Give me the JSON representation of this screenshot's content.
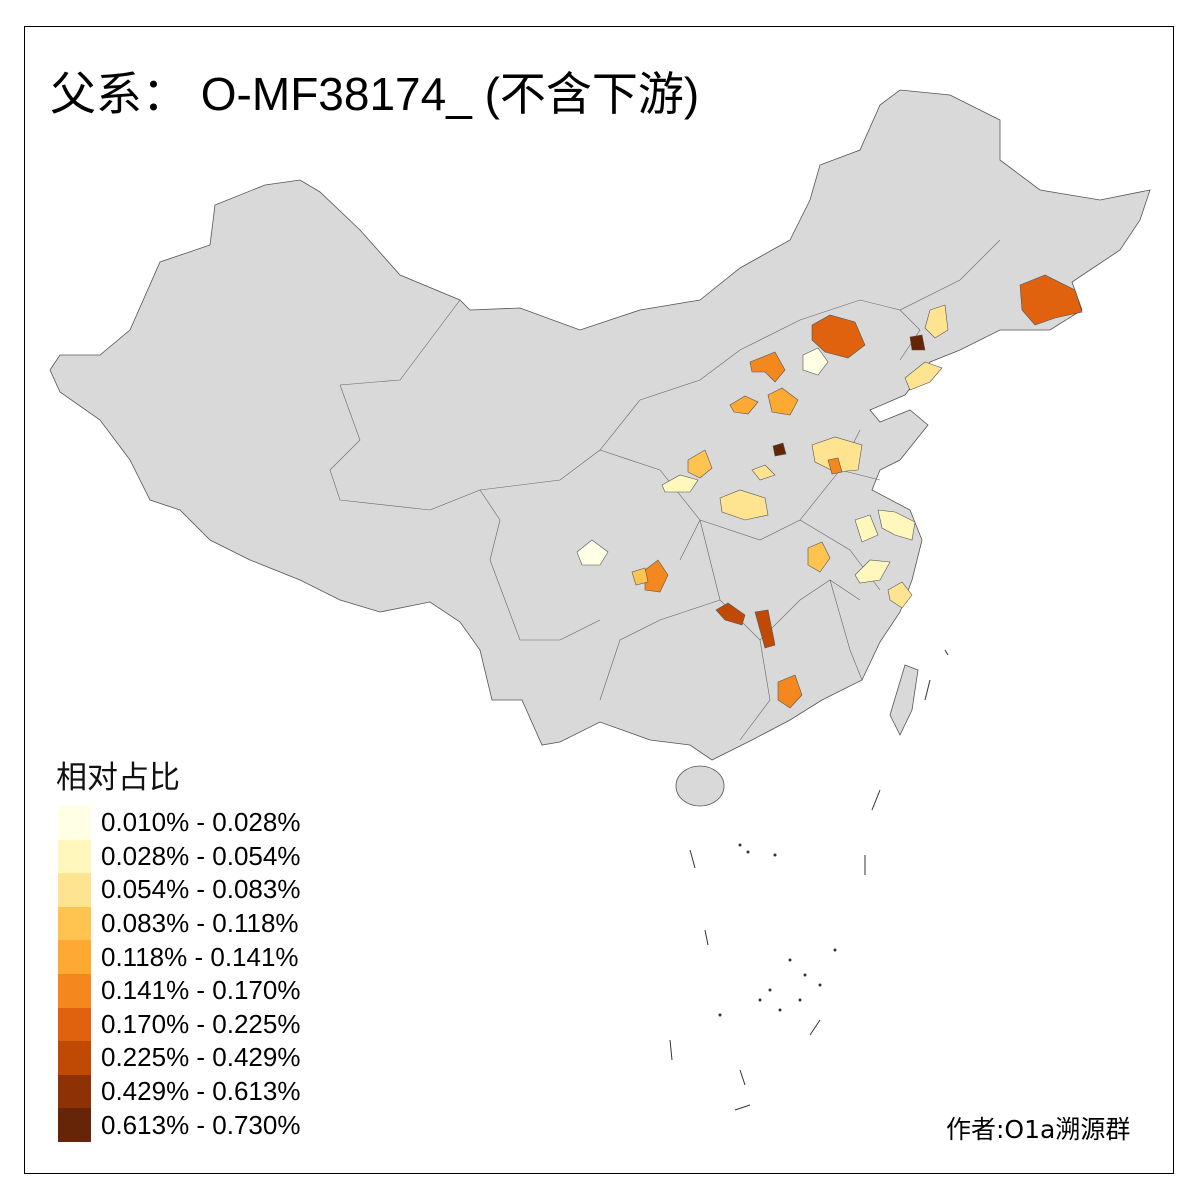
{
  "title": "父系： O-MF38174_ (不含下游)",
  "legend": {
    "title": "相对占比",
    "items": [
      {
        "label": "0.010% - 0.028%",
        "color": "#FFFFE5"
      },
      {
        "label": "0.028% - 0.054%",
        "color": "#FFF7BC"
      },
      {
        "label": "0.054% - 0.083%",
        "color": "#FEE391"
      },
      {
        "label": "0.083% - 0.118%",
        "color": "#FEC44F"
      },
      {
        "label": "0.118% - 0.141%",
        "color": "#FEA931"
      },
      {
        "label": "0.141% - 0.170%",
        "color": "#F5871F"
      },
      {
        "label": "0.170% - 0.225%",
        "color": "#E0620F"
      },
      {
        "label": "0.225% - 0.429%",
        "color": "#C04A04"
      },
      {
        "label": "0.429% - 0.613%",
        "color": "#8E3104"
      },
      {
        "label": "0.613% - 0.730%",
        "color": "#662506"
      }
    ]
  },
  "map": {
    "no_data_color": "#D9D9D9",
    "border_color": "#555555"
  },
  "author": "作者:O1a溯源群"
}
